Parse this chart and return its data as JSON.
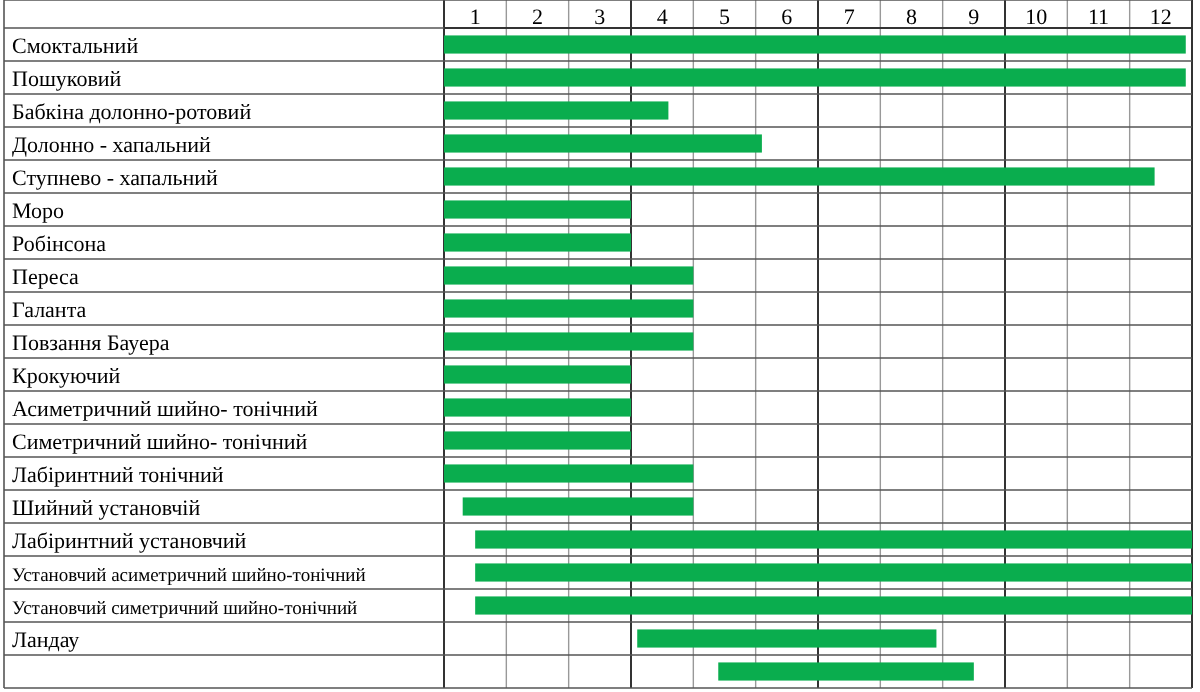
{
  "chart_data": {
    "type": "bar",
    "orientation": "horizontal",
    "categories": [
      "Смоктальний",
      "Пошуковий",
      "Бабкіна долонно-ротовий",
      "Долонно - хапальний",
      "Ступнево - хапальний",
      "Моро",
      "Робінсона",
      "Переса",
      "Галанта",
      "Повзання Бауера",
      "Крокуючий",
      "Асиметричний шийно- тонічний",
      "Симетричний шийно- тонічний",
      "Лабіринтний тонічний",
      "Шийний установчій",
      "Лабіринтний установчий",
      "Установчий асиметричний шийно-тонічний",
      "Установчий симетричний шийно-тонічний",
      "Ландау",
      null
    ],
    "base": [
      0,
      0,
      0,
      0,
      0,
      0,
      0,
      0,
      0,
      0,
      0,
      0,
      0,
      0,
      0.3,
      0.5,
      0.5,
      0.5,
      3.1,
      4.4
    ],
    "values": [
      11.9,
      11.9,
      3.6,
      5.1,
      11.4,
      3,
      3,
      4,
      4,
      4,
      3,
      3,
      3,
      4,
      3.7,
      11.5,
      11.5,
      11.5,
      4.8,
      4.1
    ],
    "color": "#0aad4e",
    "xlim": [
      0,
      12
    ],
    "xticks": [
      {
        "value": 0.5,
        "label": "1"
      },
      {
        "value": 1.5,
        "label": "2"
      },
      {
        "value": 2.5,
        "label": "3"
      },
      {
        "value": 3.5,
        "label": "4"
      },
      {
        "value": 4.5,
        "label": "5"
      },
      {
        "value": 5.5,
        "label": "6"
      },
      {
        "value": 6.5,
        "label": "7"
      },
      {
        "value": 7.5,
        "label": "8"
      },
      {
        "value": 8.5,
        "label": "9"
      },
      {
        "value": 9.5,
        "label": "10"
      },
      {
        "value": 10.5,
        "label": "11"
      },
      {
        "value": 11.5,
        "label": "12"
      }
    ],
    "grid": true
  }
}
